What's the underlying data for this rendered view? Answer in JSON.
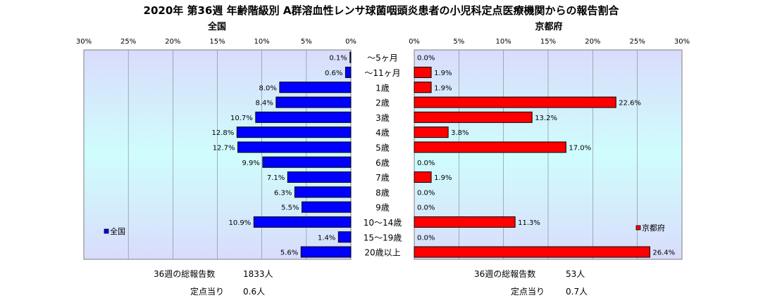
{
  "title": "2020年 第36週 年齢階級別 A群溶血性レンサ球菌咽頭炎患者の小児科定点医療機関からの報告割合",
  "chart_data": [
    {
      "type": "bar",
      "orientation": "horizontal",
      "direction": "right-to-left",
      "title": "全国",
      "categories": [
        "〜5ヶ月",
        "〜11ヶ月",
        "1歳",
        "2歳",
        "3歳",
        "4歳",
        "5歳",
        "6歳",
        "7歳",
        "8歳",
        "9歳",
        "10〜14歳",
        "15〜19歳",
        "20歳以上"
      ],
      "series": [
        {
          "name": "全国",
          "values": [
            0.1,
            0.6,
            8.0,
            8.4,
            10.7,
            12.8,
            12.7,
            9.9,
            7.1,
            6.3,
            5.5,
            10.9,
            1.4,
            5.6
          ]
        }
      ],
      "xlim": [
        0,
        30
      ],
      "xticks": [
        "30%",
        "25%",
        "20%",
        "15%",
        "10%",
        "5%",
        "0%"
      ],
      "legend": "bottom-left",
      "grid": true,
      "colors": {
        "bar": "#0000ff",
        "plot_top": "#d9dcfb",
        "plot_mid": "#cffdfd"
      }
    },
    {
      "type": "bar",
      "orientation": "horizontal",
      "direction": "left-to-right",
      "title": "京都府",
      "categories": [
        "〜5ヶ月",
        "〜11ヶ月",
        "1歳",
        "2歳",
        "3歳",
        "4歳",
        "5歳",
        "6歳",
        "7歳",
        "8歳",
        "9歳",
        "10〜14歳",
        "15〜19歳",
        "20歳以上"
      ],
      "series": [
        {
          "name": "京都府",
          "values": [
            0.0,
            1.9,
            1.9,
            22.6,
            13.2,
            3.8,
            17.0,
            0.0,
            1.9,
            0.0,
            0.0,
            11.3,
            0.0,
            26.4
          ]
        }
      ],
      "xlim": [
        0,
        30
      ],
      "xticks": [
        "0%",
        "5%",
        "10%",
        "15%",
        "20%",
        "25%",
        "30%"
      ],
      "legend": "bottom-right",
      "grid": true,
      "colors": {
        "bar": "#ff0000",
        "plot_top": "#d9dcfb",
        "plot_mid": "#cffdfd"
      }
    }
  ],
  "footer": {
    "national_total_label": "36週の総報告数",
    "national_total_value": "1833人",
    "national_per_label": "定点当り",
    "national_per_value": "0.6人",
    "kyoto_total_label": "36週の総報告数",
    "kyoto_total_value": "53人",
    "kyoto_per_label": "定点当り",
    "kyoto_per_value": "0.7人"
  }
}
